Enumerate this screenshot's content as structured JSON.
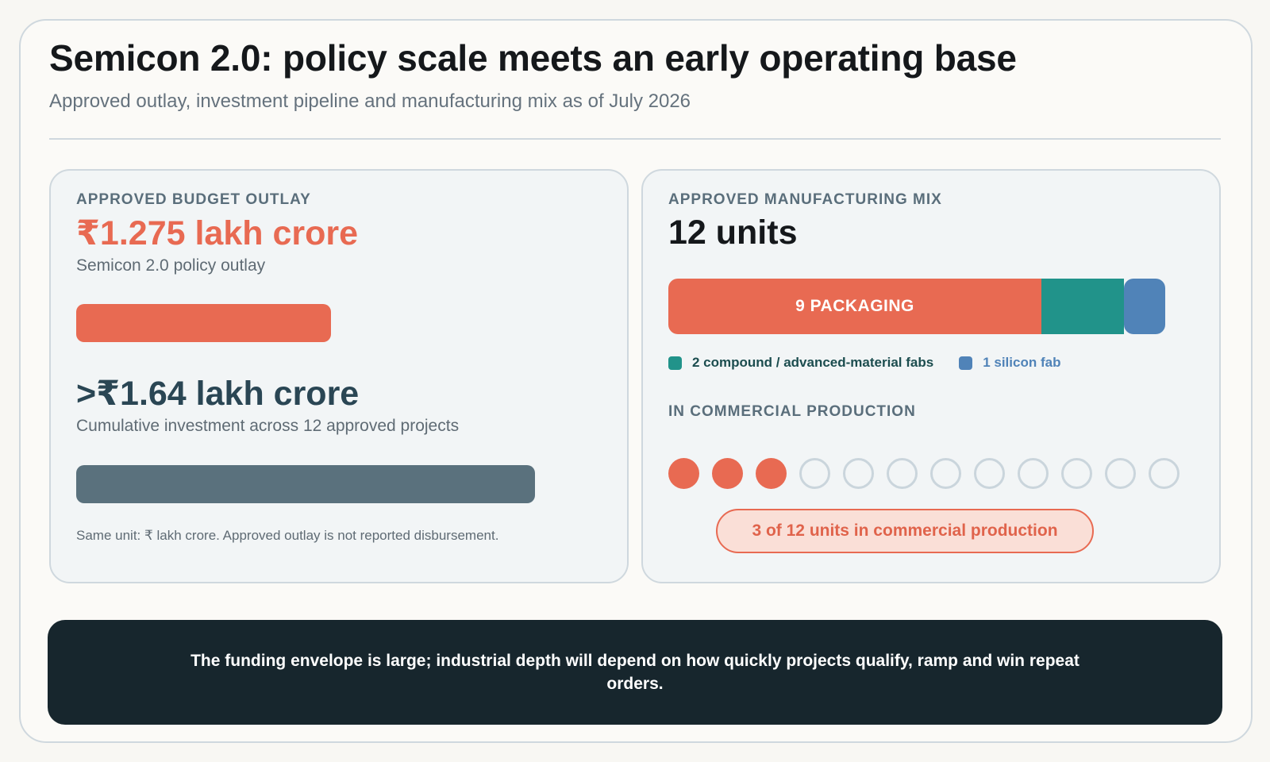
{
  "header": {
    "title": "Semicon 2.0: policy scale meets an early operating base",
    "subtitle": "Approved outlay, investment pipeline and manufacturing mix as of July 2026"
  },
  "budget_card": {
    "eyebrow": "APPROVED BUDGET OUTLAY",
    "outlay_value": "₹1.275 lakh crore",
    "outlay_desc": "Semicon 2.0 policy outlay",
    "investment_value": ">₹1.64 lakh crore",
    "investment_desc": "Cumulative investment across 12 approved projects",
    "note": "Same unit: ₹ lakh crore. Approved outlay is not reported disbursement."
  },
  "mix_card": {
    "eyebrow": "APPROVED MANUFACTURING MIX",
    "total": "12 units",
    "packaging_label": "9 PACKAGING",
    "legend_compound": "2 compound / advanced-material fabs",
    "legend_silicon": "1 silicon fab",
    "production_eyebrow": "IN COMMERCIAL PRODUCTION",
    "production_pill": "3 of 12 units in commercial production"
  },
  "banner": {
    "text": "The funding envelope is large; industrial depth will depend on how quickly projects qualify, ramp and win repeat orders."
  },
  "colors": {
    "accent": "#e86a52",
    "slate": "#5a717d",
    "teal": "#21938a",
    "blue": "#5083b8",
    "dark": "#17262d"
  },
  "chart_data": [
    {
      "type": "bar",
      "unit": "₹ lakh crore",
      "categories": [
        "Semicon 2.0 policy outlay",
        "Cumulative investment across 12 approved projects"
      ],
      "values": [
        1.275,
        1.64
      ],
      "labels": [
        "₹1.275 lakh crore",
        ">₹1.64 lakh crore"
      ]
    },
    {
      "type": "bar",
      "stacked": true,
      "categories": [
        "packaging",
        "compound / advanced-material fabs",
        "silicon fab"
      ],
      "values": [
        9,
        2,
        1
      ],
      "total": 12
    },
    {
      "type": "table",
      "in_commercial_production": 3,
      "total_units": 12
    }
  ]
}
